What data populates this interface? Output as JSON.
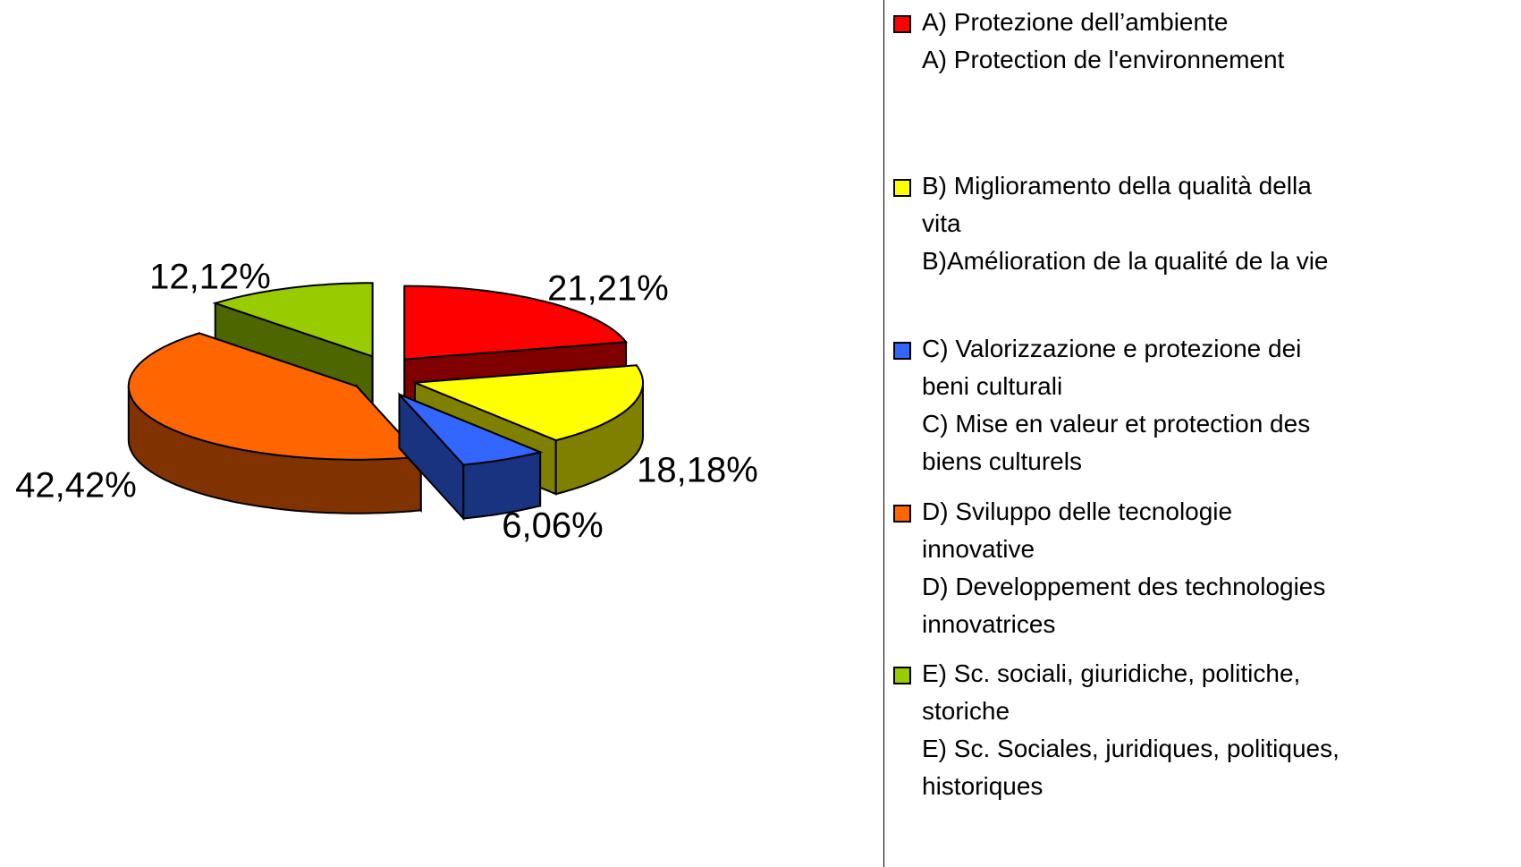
{
  "chart_data": {
    "type": "pie3d",
    "categories": [
      "A) Protezione dell’ambiente\nA) Protection de l'environnement",
      "B) Miglioramento della qualità della\nvita\nB)Amélioration de la qualité de la vie",
      "C) Valorizzazione e protezione dei\nbeni culturali\nC) Mise en valeur et protection des\nbiens culturels",
      "D) Sviluppo delle tecnologie\ninnovative\nD) Developpement des technologies\ninnovatrices",
      "E) Sc. sociali, giuridiche, politiche,\nstoriche\nE) Sc. Sociales, juridiques, politiques,\nhistoriques"
    ],
    "values": [
      21.21,
      18.18,
      6.06,
      42.42,
      12.12
    ],
    "value_labels": [
      "21,21%",
      "18,18%",
      "6,06%",
      "42,42%",
      "12,12%"
    ],
    "colors": [
      "#ff0000",
      "#ffff00",
      "#3366ff",
      "#ff6600",
      "#99cc00"
    ],
    "legend": "right"
  }
}
